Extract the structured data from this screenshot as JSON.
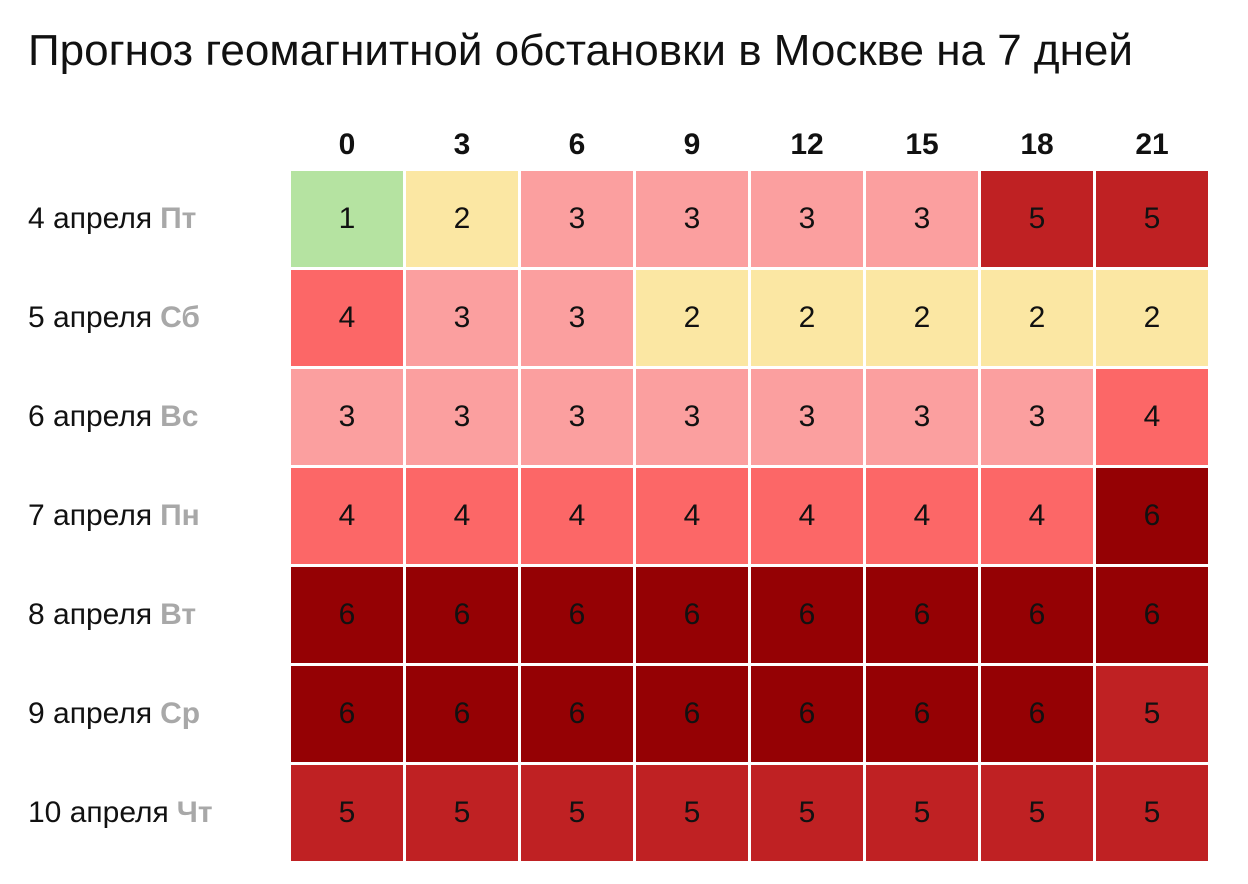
{
  "title": "Прогноз геомагнитной обстановки в Москве на 7 дней",
  "chart_data": {
    "type": "heatmap",
    "title": "Прогноз геомагнитной обстановки в Москве на 7 дней",
    "x": [
      "0",
      "3",
      "6",
      "9",
      "12",
      "15",
      "18",
      "21"
    ],
    "rows": [
      {
        "date": "4 апреля",
        "dow": "Пт",
        "values": [
          1,
          2,
          3,
          3,
          3,
          3,
          5,
          5
        ]
      },
      {
        "date": "5 апреля",
        "dow": "Сб",
        "values": [
          4,
          3,
          3,
          2,
          2,
          2,
          2,
          2
        ]
      },
      {
        "date": "6 апреля",
        "dow": "Вс",
        "values": [
          3,
          3,
          3,
          3,
          3,
          3,
          3,
          4
        ]
      },
      {
        "date": "7 апреля",
        "dow": "Пн",
        "values": [
          4,
          4,
          4,
          4,
          4,
          4,
          4,
          6
        ]
      },
      {
        "date": "8 апреля",
        "dow": "Вт",
        "values": [
          6,
          6,
          6,
          6,
          6,
          6,
          6,
          6
        ]
      },
      {
        "date": "9 апреля",
        "dow": "Ср",
        "values": [
          6,
          6,
          6,
          6,
          6,
          6,
          6,
          5
        ]
      },
      {
        "date": "10 апреля",
        "dow": "Чт",
        "values": [
          5,
          5,
          5,
          5,
          5,
          5,
          5,
          5
        ]
      }
    ],
    "colors": {
      "1": "#b5e3a1",
      "2": "#fbe7a3",
      "3": "#fb9f9f",
      "4": "#fc6767",
      "5": "#bf2123",
      "6": "#950104"
    }
  }
}
